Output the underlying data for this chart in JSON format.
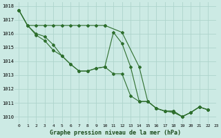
{
  "title": "Graphe pression niveau de la mer (hPa)",
  "background_color": "#cceae4",
  "grid_color": "#aed4cc",
  "line_color": "#2d6e2d",
  "series": [
    {
      "name": "line_dashed",
      "x": [
        0,
        1,
        2,
        3,
        4,
        5,
        6,
        7,
        8,
        9,
        10
      ],
      "y": [
        1017.7,
        1016.6,
        1016.6,
        1016.6,
        1016.6,
        1016.6,
        1016.6,
        1016.6,
        1016.6,
        1016.6,
        1016.6
      ]
    },
    {
      "name": "line_dashed2",
      "x": [
        10,
        12,
        14,
        15,
        16,
        17,
        18,
        19,
        20,
        21,
        22
      ],
      "y": [
        1016.6,
        1016.1,
        1013.6,
        1011.1,
        1010.6,
        1010.4,
        1010.4,
        1010.0,
        1010.3,
        1010.7,
        1010.5
      ]
    },
    {
      "name": "line_main1",
      "x": [
        0,
        1,
        2,
        3,
        4,
        5,
        6,
        7,
        8,
        9,
        10,
        11,
        12,
        13,
        14,
        15,
        16,
        17,
        18,
        19,
        20,
        21,
        22
      ],
      "y": [
        1017.7,
        1016.6,
        1016.0,
        1015.8,
        1015.2,
        1014.4,
        1013.8,
        1013.3,
        1013.3,
        1013.5,
        1013.6,
        1016.1,
        1015.3,
        1013.6,
        1011.1,
        1011.1,
        1010.6,
        1010.4,
        1010.4,
        1010.0,
        1010.3,
        1010.7,
        1010.5
      ]
    },
    {
      "name": "line_main2",
      "x": [
        0,
        1,
        2,
        3,
        4,
        5,
        6,
        7,
        8,
        9,
        10,
        11,
        12,
        13,
        14,
        15,
        16,
        17,
        18,
        19,
        20,
        21,
        22
      ],
      "y": [
        1017.7,
        1016.6,
        1015.9,
        1015.5,
        1014.8,
        1014.4,
        1013.8,
        1013.3,
        1013.3,
        1013.5,
        1013.6,
        1013.1,
        1013.1,
        1011.5,
        1011.1,
        1011.1,
        1010.6,
        1010.4,
        1010.3,
        1010.0,
        1010.3,
        1010.7,
        1010.5
      ]
    }
  ],
  "xlim": [
    -0.5,
    23
  ],
  "ylim": [
    1009.5,
    1018.3
  ],
  "yticks": [
    1010,
    1011,
    1012,
    1013,
    1014,
    1015,
    1016,
    1017,
    1018
  ],
  "xticks": [
    0,
    1,
    2,
    3,
    4,
    5,
    6,
    7,
    8,
    9,
    10,
    11,
    12,
    13,
    14,
    15,
    16,
    17,
    18,
    19,
    20,
    21,
    22,
    23
  ],
  "xtick_labels": [
    "0",
    "1",
    "2",
    "3",
    "4",
    "5",
    "6",
    "7",
    "8",
    "9",
    "10",
    "11",
    "12",
    "13",
    "14",
    "15",
    "16",
    "17",
    "18",
    "19",
    "20",
    "21",
    "22",
    "23"
  ]
}
